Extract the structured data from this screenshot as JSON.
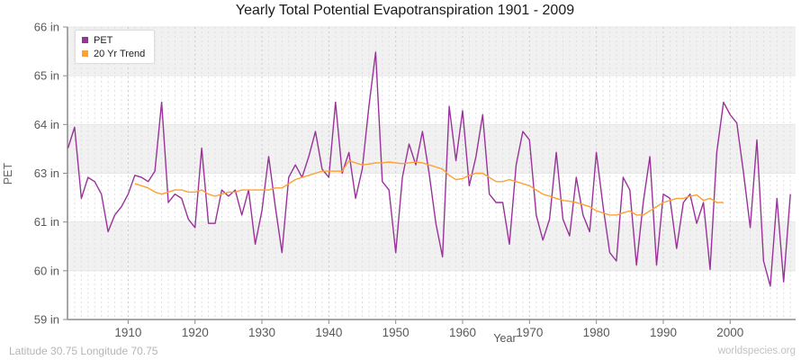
{
  "title": "Yearly Total Potential Evapotranspiration 1901 - 2009",
  "legend": {
    "items": [
      {
        "label": "PET",
        "color": "#993399"
      },
      {
        "label": "20 Yr Trend",
        "color": "#FFA033"
      }
    ]
  },
  "axes": {
    "y_title": "PET",
    "x_title": "Year"
  },
  "footer": {
    "left": "Latitude 30.75 Longitude 70.75",
    "right": "worldspecies.org"
  },
  "chart_data": {
    "type": "line",
    "title": "Yearly Total Potential Evapotranspiration 1901 - 2009",
    "xlabel": "Year",
    "ylabel": "PET",
    "ylim": [
      59,
      66
    ],
    "grid": "horizontal bands + dashed yearly vertical lines",
    "legend_position": "top-left",
    "y_tick_values": [
      59,
      60.167,
      61.333,
      62.5,
      63.667,
      64.833,
      66
    ],
    "y_tick_labels": [
      "59 in",
      "60 in",
      "61 in",
      "63 in",
      "64 in",
      "65 in",
      "66 in"
    ],
    "x_tick_values": [
      1910,
      1920,
      1930,
      1940,
      1950,
      1960,
      1970,
      1980,
      1990,
      2000
    ],
    "x_start": 1901,
    "x_end": 2009,
    "series": [
      {
        "name": "PET",
        "color": "#993399",
        "start_year": 1901,
        "values": [
          63.1,
          63.6,
          61.9,
          62.4,
          62.3,
          62.0,
          61.1,
          61.5,
          61.7,
          62.0,
          62.45,
          62.4,
          62.3,
          62.55,
          64.2,
          61.8,
          62.0,
          61.9,
          61.4,
          61.2,
          63.1,
          61.3,
          61.3,
          62.1,
          61.95,
          62.1,
          61.5,
          62.1,
          60.8,
          61.6,
          62.9,
          61.7,
          60.6,
          62.4,
          62.7,
          62.4,
          62.9,
          63.5,
          62.6,
          62.4,
          64.2,
          62.5,
          63.0,
          61.9,
          62.6,
          64.1,
          65.4,
          62.3,
          62.1,
          60.6,
          62.4,
          63.2,
          62.7,
          63.5,
          62.5,
          61.3,
          60.5,
          64.1,
          62.8,
          64.0,
          62.2,
          62.9,
          63.9,
          62.0,
          61.8,
          61.8,
          60.8,
          62.7,
          63.5,
          63.3,
          61.5,
          60.9,
          61.4,
          63.0,
          61.4,
          61.0,
          62.4,
          61.5,
          61.1,
          63.0,
          61.7,
          60.6,
          60.4,
          62.4,
          62.1,
          60.3,
          61.8,
          62.9,
          60.3,
          62.0,
          61.9,
          60.7,
          61.8,
          62.0,
          61.3,
          61.8,
          60.2,
          63.0,
          64.2,
          63.9,
          63.7,
          62.5,
          61.2,
          63.3,
          60.4,
          59.8,
          61.9,
          59.9,
          62.0
        ]
      },
      {
        "name": "20 Yr Trend",
        "color": "#FFA033",
        "start_year": 1911,
        "values": [
          62.25,
          62.2,
          62.15,
          62.05,
          62.0,
          62.05,
          62.1,
          62.1,
          62.05,
          62.05,
          62.1,
          62.0,
          61.95,
          62.0,
          62.05,
          62.05,
          62.1,
          62.1,
          62.1,
          62.1,
          62.1,
          62.15,
          62.15,
          62.25,
          62.35,
          62.4,
          62.45,
          62.5,
          62.55,
          62.55,
          62.55,
          62.55,
          62.8,
          62.75,
          62.7,
          62.72,
          62.75,
          62.75,
          62.77,
          62.75,
          62.73,
          62.75,
          62.77,
          62.75,
          62.7,
          62.65,
          62.6,
          62.45,
          62.35,
          62.37,
          62.45,
          62.5,
          62.5,
          62.4,
          62.3,
          62.3,
          62.35,
          62.3,
          62.25,
          62.2,
          62.1,
          62.0,
          61.95,
          61.9,
          61.85,
          61.83,
          61.8,
          61.75,
          61.7,
          61.6,
          61.55,
          61.5,
          61.5,
          61.55,
          61.6,
          61.5,
          61.5,
          61.6,
          61.7,
          61.8,
          61.85,
          61.9,
          61.9,
          61.95,
          61.98,
          61.85,
          61.9,
          61.8,
          61.8
        ]
      }
    ]
  }
}
